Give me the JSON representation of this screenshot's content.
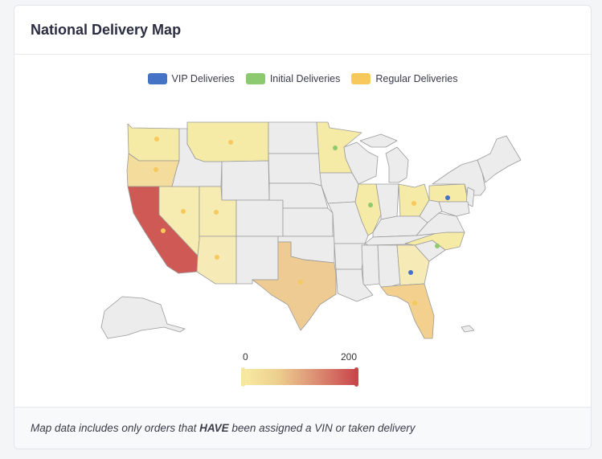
{
  "card": {
    "title": "National Delivery Map"
  },
  "legend": [
    {
      "label": "VIP Deliveries",
      "color": "#4472c4"
    },
    {
      "label": "Initial Deliveries",
      "color": "#8cc96f"
    },
    {
      "label": "Regular Deliveries",
      "color": "#f7c85c"
    }
  ],
  "scale": {
    "min_label": "0",
    "max_label": "200",
    "min_color": "#f5e6a0",
    "max_color": "#c8454a"
  },
  "footer": {
    "prefix": "Map data includes only orders that ",
    "emphasis": "HAVE",
    "suffix": " been assigned a VIN or taken delivery"
  },
  "map": {
    "highlighted_states": [
      {
        "state": "Washington",
        "marker": "Regular Deliveries"
      },
      {
        "state": "Oregon",
        "marker": "Regular Deliveries"
      },
      {
        "state": "California",
        "marker": "Regular Deliveries"
      },
      {
        "state": "Nevada",
        "marker": "Regular Deliveries"
      },
      {
        "state": "Utah",
        "marker": "Regular Deliveries"
      },
      {
        "state": "Arizona",
        "marker": "Regular Deliveries"
      },
      {
        "state": "Montana",
        "marker": "Regular Deliveries"
      },
      {
        "state": "Texas",
        "marker": "Regular Deliveries"
      },
      {
        "state": "Minnesota",
        "marker": "Initial Deliveries"
      },
      {
        "state": "Illinois",
        "marker": "Initial Deliveries"
      },
      {
        "state": "Ohio",
        "marker": "Regular Deliveries"
      },
      {
        "state": "Pennsylvania",
        "marker": "VIP Deliveries"
      },
      {
        "state": "North Carolina",
        "marker": "Initial Deliveries"
      },
      {
        "state": "Georgia",
        "marker": "VIP Deliveries"
      },
      {
        "state": "Florida",
        "marker": "Regular Deliveries"
      }
    ]
  }
}
